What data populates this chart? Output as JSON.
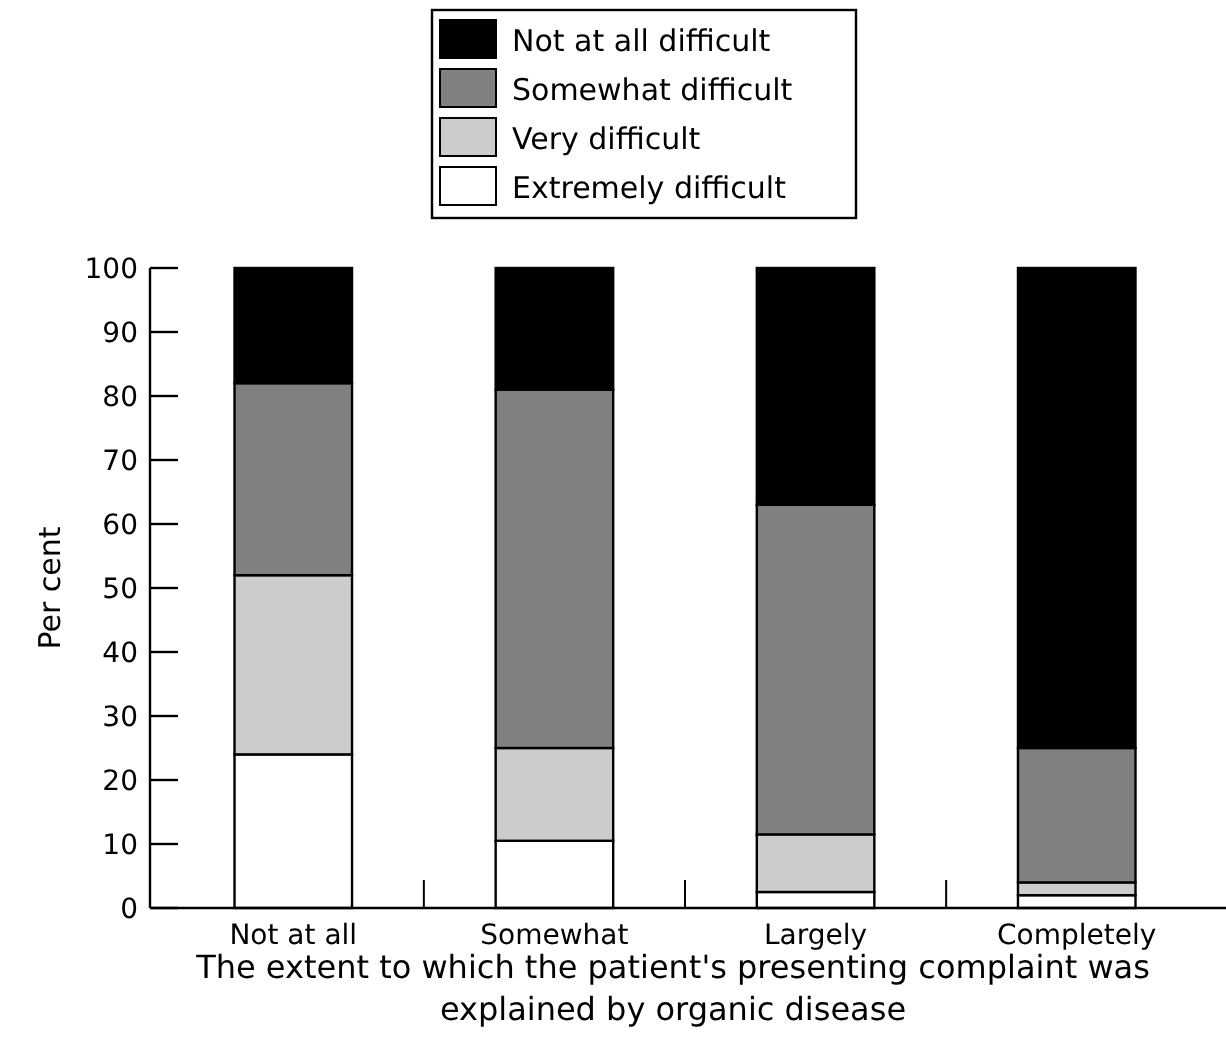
{
  "chart_data": {
    "type": "bar",
    "stacked": true,
    "xlabel": "The extent to which the patient's presenting complaint was explained by organic disease",
    "ylabel": "Per cent",
    "categories": [
      "Not at all",
      "Somewhat",
      "Largely",
      "Completely"
    ],
    "series": [
      {
        "name": "Extremely difficult",
        "color": "#ffffff",
        "values": [
          24,
          10.5,
          2.5,
          2
        ]
      },
      {
        "name": "Very difficult",
        "color": "#cccccc",
        "values": [
          28,
          14.5,
          9,
          2
        ]
      },
      {
        "name": "Somewhat difficult",
        "color": "#808080",
        "values": [
          30,
          56,
          51.5,
          21
        ]
      },
      {
        "name": "Not at all difficult",
        "color": "#000000",
        "values": [
          18,
          19,
          37,
          75
        ]
      }
    ],
    "ylim": [
      0,
      100
    ],
    "yticks": [
      0,
      10,
      20,
      30,
      40,
      50,
      60,
      70,
      80,
      90,
      100
    ],
    "legend": "top",
    "grid": false
  }
}
